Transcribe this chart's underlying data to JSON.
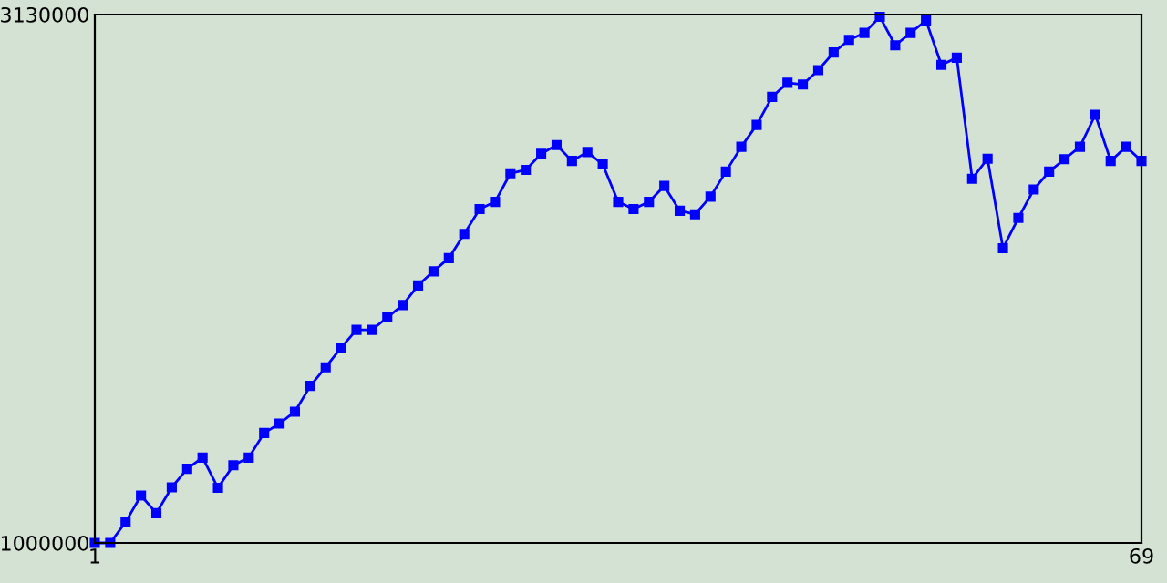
{
  "chart_data": {
    "type": "line",
    "x": [
      1,
      2,
      3,
      4,
      5,
      6,
      7,
      8,
      9,
      10,
      11,
      12,
      13,
      14,
      15,
      16,
      17,
      18,
      19,
      20,
      21,
      22,
      23,
      24,
      25,
      26,
      27,
      28,
      29,
      30,
      31,
      32,
      33,
      34,
      35,
      36,
      37,
      38,
      39,
      40,
      41,
      42,
      43,
      44,
      45,
      46,
      47,
      48,
      49,
      50,
      51,
      52,
      53,
      54,
      55,
      56,
      57,
      58,
      59,
      60,
      61,
      62,
      63,
      64,
      65,
      66,
      67,
      68,
      69
    ],
    "series": [
      {
        "color": "#0000ff",
        "values": [
          1000000,
          1000000,
          1084000,
          1191000,
          1120000,
          1224000,
          1299000,
          1344000,
          1222000,
          1313000,
          1344000,
          1443000,
          1481000,
          1529000,
          1633000,
          1708000,
          1787000,
          1859000,
          1859000,
          1909000,
          1959000,
          2038000,
          2095000,
          2148000,
          2246000,
          2346000,
          2375000,
          2490000,
          2504000,
          2569000,
          2604000,
          2540000,
          2576000,
          2526000,
          2375000,
          2346000,
          2375000,
          2439000,
          2339000,
          2325000,
          2396000,
          2497000,
          2597000,
          2685000,
          2798000,
          2855000,
          2848000,
          2906000,
          2977000,
          3028000,
          3056000,
          3121000,
          3006000,
          3056000,
          3106000,
          2927000,
          2956000,
          2468000,
          2549000,
          2188000,
          2310000,
          2425000,
          2497000,
          2547000,
          2597000,
          2726000,
          2540000,
          2597000,
          2540000
        ]
      }
    ],
    "xlim": [
      1,
      69
    ],
    "xticks": [
      1,
      69
    ],
    "ylim": [
      1000000,
      3130000
    ],
    "yticks": [
      1000000,
      3130000
    ],
    "marker": "square",
    "line_style": "solid",
    "grid": false,
    "legend": false
  }
}
